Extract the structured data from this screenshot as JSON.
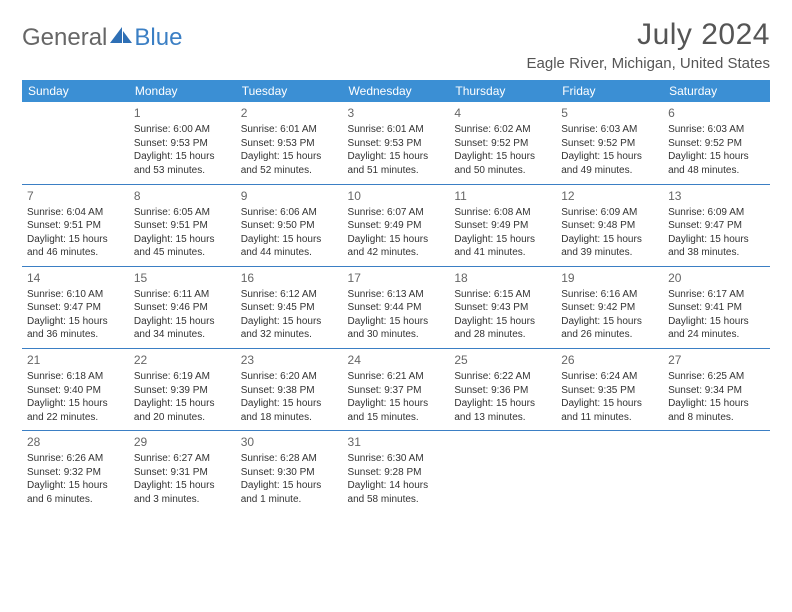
{
  "brand": {
    "word1": "General",
    "word2": "Blue"
  },
  "title": "July 2024",
  "location": "Eagle River, Michigan, United States",
  "colors": {
    "header_bg": "#3b8fd4",
    "header_fg": "#ffffff",
    "rule": "#3b7fc4",
    "text": "#333333",
    "muted": "#666666",
    "brand_blue": "#3b7fc4"
  },
  "day_headers": [
    "Sunday",
    "Monday",
    "Tuesday",
    "Wednesday",
    "Thursday",
    "Friday",
    "Saturday"
  ],
  "weeks": [
    [
      null,
      {
        "n": "1",
        "sr": "Sunrise: 6:00 AM",
        "ss": "Sunset: 9:53 PM",
        "d1": "Daylight: 15 hours",
        "d2": "and 53 minutes."
      },
      {
        "n": "2",
        "sr": "Sunrise: 6:01 AM",
        "ss": "Sunset: 9:53 PM",
        "d1": "Daylight: 15 hours",
        "d2": "and 52 minutes."
      },
      {
        "n": "3",
        "sr": "Sunrise: 6:01 AM",
        "ss": "Sunset: 9:53 PM",
        "d1": "Daylight: 15 hours",
        "d2": "and 51 minutes."
      },
      {
        "n": "4",
        "sr": "Sunrise: 6:02 AM",
        "ss": "Sunset: 9:52 PM",
        "d1": "Daylight: 15 hours",
        "d2": "and 50 minutes."
      },
      {
        "n": "5",
        "sr": "Sunrise: 6:03 AM",
        "ss": "Sunset: 9:52 PM",
        "d1": "Daylight: 15 hours",
        "d2": "and 49 minutes."
      },
      {
        "n": "6",
        "sr": "Sunrise: 6:03 AM",
        "ss": "Sunset: 9:52 PM",
        "d1": "Daylight: 15 hours",
        "d2": "and 48 minutes."
      }
    ],
    [
      {
        "n": "7",
        "sr": "Sunrise: 6:04 AM",
        "ss": "Sunset: 9:51 PM",
        "d1": "Daylight: 15 hours",
        "d2": "and 46 minutes."
      },
      {
        "n": "8",
        "sr": "Sunrise: 6:05 AM",
        "ss": "Sunset: 9:51 PM",
        "d1": "Daylight: 15 hours",
        "d2": "and 45 minutes."
      },
      {
        "n": "9",
        "sr": "Sunrise: 6:06 AM",
        "ss": "Sunset: 9:50 PM",
        "d1": "Daylight: 15 hours",
        "d2": "and 44 minutes."
      },
      {
        "n": "10",
        "sr": "Sunrise: 6:07 AM",
        "ss": "Sunset: 9:49 PM",
        "d1": "Daylight: 15 hours",
        "d2": "and 42 minutes."
      },
      {
        "n": "11",
        "sr": "Sunrise: 6:08 AM",
        "ss": "Sunset: 9:49 PM",
        "d1": "Daylight: 15 hours",
        "d2": "and 41 minutes."
      },
      {
        "n": "12",
        "sr": "Sunrise: 6:09 AM",
        "ss": "Sunset: 9:48 PM",
        "d1": "Daylight: 15 hours",
        "d2": "and 39 minutes."
      },
      {
        "n": "13",
        "sr": "Sunrise: 6:09 AM",
        "ss": "Sunset: 9:47 PM",
        "d1": "Daylight: 15 hours",
        "d2": "and 38 minutes."
      }
    ],
    [
      {
        "n": "14",
        "sr": "Sunrise: 6:10 AM",
        "ss": "Sunset: 9:47 PM",
        "d1": "Daylight: 15 hours",
        "d2": "and 36 minutes."
      },
      {
        "n": "15",
        "sr": "Sunrise: 6:11 AM",
        "ss": "Sunset: 9:46 PM",
        "d1": "Daylight: 15 hours",
        "d2": "and 34 minutes."
      },
      {
        "n": "16",
        "sr": "Sunrise: 6:12 AM",
        "ss": "Sunset: 9:45 PM",
        "d1": "Daylight: 15 hours",
        "d2": "and 32 minutes."
      },
      {
        "n": "17",
        "sr": "Sunrise: 6:13 AM",
        "ss": "Sunset: 9:44 PM",
        "d1": "Daylight: 15 hours",
        "d2": "and 30 minutes."
      },
      {
        "n": "18",
        "sr": "Sunrise: 6:15 AM",
        "ss": "Sunset: 9:43 PM",
        "d1": "Daylight: 15 hours",
        "d2": "and 28 minutes."
      },
      {
        "n": "19",
        "sr": "Sunrise: 6:16 AM",
        "ss": "Sunset: 9:42 PM",
        "d1": "Daylight: 15 hours",
        "d2": "and 26 minutes."
      },
      {
        "n": "20",
        "sr": "Sunrise: 6:17 AM",
        "ss": "Sunset: 9:41 PM",
        "d1": "Daylight: 15 hours",
        "d2": "and 24 minutes."
      }
    ],
    [
      {
        "n": "21",
        "sr": "Sunrise: 6:18 AM",
        "ss": "Sunset: 9:40 PM",
        "d1": "Daylight: 15 hours",
        "d2": "and 22 minutes."
      },
      {
        "n": "22",
        "sr": "Sunrise: 6:19 AM",
        "ss": "Sunset: 9:39 PM",
        "d1": "Daylight: 15 hours",
        "d2": "and 20 minutes."
      },
      {
        "n": "23",
        "sr": "Sunrise: 6:20 AM",
        "ss": "Sunset: 9:38 PM",
        "d1": "Daylight: 15 hours",
        "d2": "and 18 minutes."
      },
      {
        "n": "24",
        "sr": "Sunrise: 6:21 AM",
        "ss": "Sunset: 9:37 PM",
        "d1": "Daylight: 15 hours",
        "d2": "and 15 minutes."
      },
      {
        "n": "25",
        "sr": "Sunrise: 6:22 AM",
        "ss": "Sunset: 9:36 PM",
        "d1": "Daylight: 15 hours",
        "d2": "and 13 minutes."
      },
      {
        "n": "26",
        "sr": "Sunrise: 6:24 AM",
        "ss": "Sunset: 9:35 PM",
        "d1": "Daylight: 15 hours",
        "d2": "and 11 minutes."
      },
      {
        "n": "27",
        "sr": "Sunrise: 6:25 AM",
        "ss": "Sunset: 9:34 PM",
        "d1": "Daylight: 15 hours",
        "d2": "and 8 minutes."
      }
    ],
    [
      {
        "n": "28",
        "sr": "Sunrise: 6:26 AM",
        "ss": "Sunset: 9:32 PM",
        "d1": "Daylight: 15 hours",
        "d2": "and 6 minutes."
      },
      {
        "n": "29",
        "sr": "Sunrise: 6:27 AM",
        "ss": "Sunset: 9:31 PM",
        "d1": "Daylight: 15 hours",
        "d2": "and 3 minutes."
      },
      {
        "n": "30",
        "sr": "Sunrise: 6:28 AM",
        "ss": "Sunset: 9:30 PM",
        "d1": "Daylight: 15 hours",
        "d2": "and 1 minute."
      },
      {
        "n": "31",
        "sr": "Sunrise: 6:30 AM",
        "ss": "Sunset: 9:28 PM",
        "d1": "Daylight: 14 hours",
        "d2": "and 58 minutes."
      },
      null,
      null,
      null
    ]
  ]
}
